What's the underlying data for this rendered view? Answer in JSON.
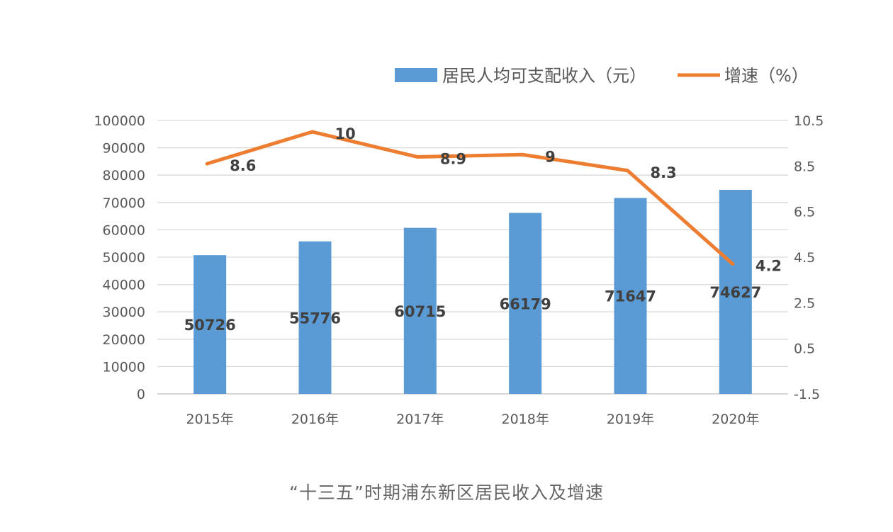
{
  "chart_data": {
    "type": "bar+line",
    "categories": [
      "2015年",
      "2016年",
      "2017年",
      "2018年",
      "2019年",
      "2020年"
    ],
    "series": [
      {
        "name": "居民人均可支配收入（元）",
        "type": "bar",
        "axis": "left",
        "color": "#5B9BD5",
        "values": [
          50726,
          55776,
          60715,
          66179,
          71647,
          74627
        ]
      },
      {
        "name": "增速（%）",
        "type": "line",
        "axis": "right",
        "color": "#ED7D31",
        "values": [
          8.6,
          10,
          8.9,
          9,
          8.3,
          4.2
        ]
      }
    ],
    "left_axis": {
      "ylim": [
        0,
        100000
      ],
      "ticks": [
        "0",
        "10000",
        "20000",
        "30000",
        "40000",
        "50000",
        "60000",
        "70000",
        "80000",
        "90000",
        "100000"
      ]
    },
    "right_axis": {
      "ylim": [
        -1.5,
        10.5
      ],
      "ticks": [
        "-1.5",
        "0.5",
        "2.5",
        "4.5",
        "6.5",
        "8.5",
        "10.5"
      ]
    },
    "grid": true,
    "legend": "top-right",
    "caption": "“十三五”时期浦东新区居民收入及增速"
  }
}
